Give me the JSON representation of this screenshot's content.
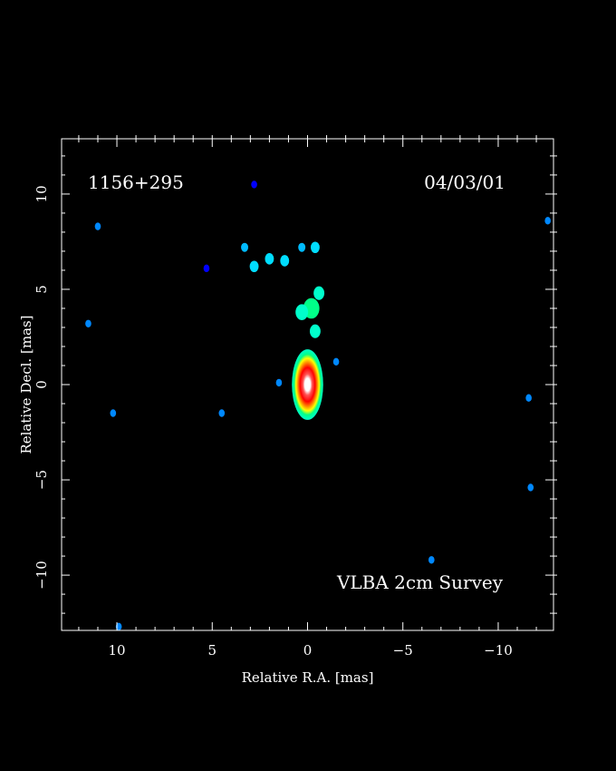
{
  "chart_data": {
    "type": "heatmap",
    "title": "",
    "xlabel": "Relative R.A. [mas]",
    "ylabel": "Relative Decl. [mas]",
    "xlim": [
      12.9,
      -12.9
    ],
    "ylim": [
      -12.9,
      12.9
    ],
    "x_ticks": [
      10,
      5,
      0,
      -5,
      -10
    ],
    "y_ticks": [
      -10,
      -5,
      0,
      5,
      10
    ],
    "x_tick_labels": [
      "10",
      "5",
      "0",
      "−5",
      "−10"
    ],
    "y_tick_labels": [
      "−10",
      "−5",
      "0",
      "5",
      "10"
    ],
    "grid": false,
    "colormap": [
      "#000000",
      "#0000ff",
      "#00aaff",
      "#00ffff",
      "#00ff88",
      "#ffff00",
      "#ff8800",
      "#ff0000",
      "#ffffff"
    ],
    "annotations": {
      "source": "1156+295",
      "date": "04/03/01",
      "survey": "VLBA 2cm Survey"
    },
    "core": {
      "x": 0.0,
      "y": 0.0,
      "peak_level": 1.0
    },
    "emission": [
      {
        "x": -0.2,
        "y": 4.0,
        "level": 0.45
      },
      {
        "x": 0.3,
        "y": 3.8,
        "level": 0.35
      },
      {
        "x": -0.6,
        "y": 4.8,
        "level": 0.3
      },
      {
        "x": -0.4,
        "y": 2.8,
        "level": 0.3
      },
      {
        "x": 2.8,
        "y": 6.2,
        "level": 0.25
      },
      {
        "x": 2.0,
        "y": 6.6,
        "level": 0.25
      },
      {
        "x": 1.2,
        "y": 6.5,
        "level": 0.25
      },
      {
        "x": -0.4,
        "y": 7.2,
        "level": 0.25
      },
      {
        "x": 3.3,
        "y": 7.2,
        "level": 0.2
      },
      {
        "x": 0.3,
        "y": 7.2,
        "level": 0.2
      },
      {
        "x": 1.5,
        "y": 0.1,
        "level": 0.12
      },
      {
        "x": -1.5,
        "y": 1.2,
        "level": 0.12
      },
      {
        "x": 11.5,
        "y": 3.2,
        "level": 0.1
      },
      {
        "x": 11.0,
        "y": 8.3,
        "level": 0.1
      },
      {
        "x": 10.2,
        "y": -1.5,
        "level": 0.1
      },
      {
        "x": 9.9,
        "y": -12.7,
        "level": 0.1
      },
      {
        "x": 4.5,
        "y": -1.5,
        "level": 0.1
      },
      {
        "x": 5.3,
        "y": 6.1,
        "level": 0.08
      },
      {
        "x": 2.8,
        "y": 10.5,
        "level": 0.08
      },
      {
        "x": -6.5,
        "y": -9.2,
        "level": 0.1
      },
      {
        "x": -11.6,
        "y": -0.7,
        "level": 0.1
      },
      {
        "x": -11.7,
        "y": -5.4,
        "level": 0.12
      },
      {
        "x": -12.6,
        "y": 8.6,
        "level": 0.1
      }
    ]
  }
}
